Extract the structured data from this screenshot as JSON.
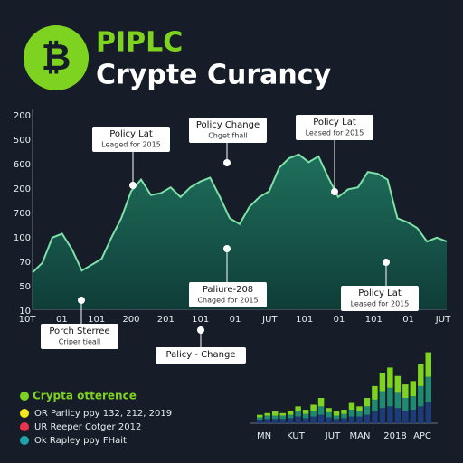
{
  "header": {
    "brand": "PIPLC",
    "title": "Crypte Curancy"
  },
  "chart_data": [
    {
      "type": "area",
      "color": "#1f6f5c",
      "line_color": "#7fe0a8",
      "ylim": [
        0,
        100
      ],
      "y_labels": [
        "200",
        "500",
        "600",
        "200",
        "700",
        "100",
        "70",
        "50",
        "10"
      ],
      "x_labels": [
        "10T",
        "01",
        "101",
        "200",
        "201",
        "101",
        "01",
        "JUT",
        "101",
        "01",
        "101",
        "01",
        "JUT"
      ],
      "values": [
        19,
        24,
        37,
        39,
        31,
        20,
        23,
        26,
        37,
        47,
        61,
        67,
        59,
        60,
        63,
        58,
        63,
        66,
        68,
        58,
        47,
        44,
        53,
        58,
        61,
        73,
        78,
        80,
        76,
        79,
        68,
        58,
        62,
        63,
        71,
        70,
        67,
        47,
        45,
        42,
        35,
        37,
        35
      ],
      "annotations": [
        {
          "title": "Policy Lat",
          "subtitle": "Leaged for 2015"
        },
        {
          "title": "Policy Change",
          "subtitle": "Chget fhall"
        },
        {
          "title": "Policy Lat",
          "subtitle": "Leased for 2015"
        },
        {
          "title": "Paliure-208",
          "subtitle": "Chaged for 2015"
        },
        {
          "title": "Policy Lat",
          "subtitle": "Leased for 2015"
        },
        {
          "title": "Porch Sterree",
          "subtitle": "Criper tieall"
        },
        {
          "title": "Palicy - Change"
        }
      ]
    },
    {
      "type": "stacked-bar",
      "ylim": [
        0,
        90
      ],
      "x_labels": [
        "MN",
        "KUT",
        "JUT",
        "MAN",
        "2018",
        "APC"
      ],
      "series": [
        {
          "color": "#1d3b78",
          "values": [
            4,
            5,
            5,
            5,
            6,
            8,
            6,
            8,
            10,
            7,
            5,
            6,
            8,
            8,
            10,
            14,
            18,
            20,
            18,
            15,
            16,
            20,
            25
          ]
        },
        {
          "color": "#1f8a70",
          "values": [
            3,
            4,
            4,
            4,
            4,
            6,
            5,
            7,
            10,
            6,
            4,
            5,
            8,
            6,
            10,
            14,
            20,
            22,
            18,
            15,
            16,
            24,
            30
          ]
        },
        {
          "color": "#7ed321",
          "values": [
            3,
            3,
            5,
            3,
            4,
            6,
            5,
            7,
            10,
            5,
            5,
            5,
            8,
            6,
            10,
            16,
            22,
            24,
            20,
            16,
            18,
            26,
            29
          ]
        }
      ]
    }
  ],
  "legend": {
    "title": "Crypta otterence",
    "items": [
      {
        "label": "OR Parlicy ppy 132, 212, 2019",
        "color": "#f5e51b"
      },
      {
        "label": "UR Reeper Cotger 2012",
        "color": "#e8344e"
      },
      {
        "label": "Ok Rapley ppy FHait",
        "color": "#1fa3a8"
      }
    ]
  }
}
